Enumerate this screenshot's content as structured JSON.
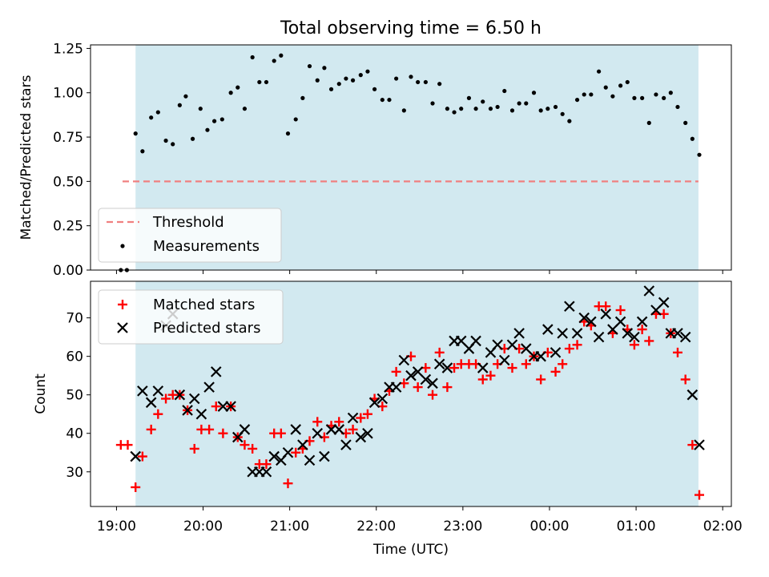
{
  "title": "Total observing time = 6.50 h",
  "xlabel": "Time (UTC)",
  "x_ticks": [
    "19:00",
    "20:00",
    "21:00",
    "22:00",
    "23:00",
    "00:00",
    "01:00",
    "02:00"
  ],
  "chart_data": [
    {
      "type": "scatter",
      "ylabel": "Matched/Predicted stars",
      "ylim": [
        0,
        1.27
      ],
      "y_ticks": [
        "0.00",
        "0.25",
        "0.50",
        "0.75",
        "1.00",
        "1.25"
      ],
      "y_tick_values": [
        0,
        0.25,
        0.5,
        0.75,
        1.0,
        1.25
      ],
      "x_range_hours": [
        18.7,
        26.1
      ],
      "shaded_span_hours": [
        19.22,
        25.72
      ],
      "shaded_color": "#d2e9f0",
      "legend_position": "lower left",
      "threshold": {
        "name": "Threshold",
        "value": 0.5,
        "x_from": 19.07,
        "x_to": 25.72,
        "color": "#f08080"
      },
      "series": [
        {
          "name": "Measurements",
          "color": "#000000",
          "marker": "dot",
          "points": [
            [
              19.05,
              0.0
            ],
            [
              19.12,
              0.0
            ],
            [
              19.22,
              0.77
            ],
            [
              19.3,
              0.67
            ],
            [
              19.4,
              0.86
            ],
            [
              19.48,
              0.89
            ],
            [
              19.57,
              0.73
            ],
            [
              19.65,
              0.71
            ],
            [
              19.73,
              0.93
            ],
            [
              19.8,
              0.98
            ],
            [
              19.88,
              0.74
            ],
            [
              19.97,
              0.91
            ],
            [
              20.05,
              0.79
            ],
            [
              20.13,
              0.84
            ],
            [
              20.22,
              0.85
            ],
            [
              20.32,
              1.0
            ],
            [
              20.4,
              1.03
            ],
            [
              20.48,
              0.91
            ],
            [
              20.57,
              1.2
            ],
            [
              20.65,
              1.06
            ],
            [
              20.73,
              1.06
            ],
            [
              20.82,
              1.18
            ],
            [
              20.9,
              1.21
            ],
            [
              20.98,
              0.77
            ],
            [
              21.07,
              0.85
            ],
            [
              21.15,
              0.97
            ],
            [
              21.23,
              1.15
            ],
            [
              21.32,
              1.07
            ],
            [
              21.4,
              1.14
            ],
            [
              21.48,
              1.02
            ],
            [
              21.57,
              1.05
            ],
            [
              21.65,
              1.08
            ],
            [
              21.73,
              1.07
            ],
            [
              21.82,
              1.1
            ],
            [
              21.9,
              1.12
            ],
            [
              21.98,
              1.02
            ],
            [
              22.07,
              0.96
            ],
            [
              22.15,
              0.96
            ],
            [
              22.23,
              1.08
            ],
            [
              22.32,
              0.9
            ],
            [
              22.4,
              1.09
            ],
            [
              22.48,
              1.06
            ],
            [
              22.57,
              1.06
            ],
            [
              22.65,
              0.94
            ],
            [
              22.73,
              1.05
            ],
            [
              22.82,
              0.91
            ],
            [
              22.9,
              0.89
            ],
            [
              22.98,
              0.91
            ],
            [
              23.07,
              0.97
            ],
            [
              23.15,
              0.91
            ],
            [
              23.23,
              0.95
            ],
            [
              23.32,
              0.91
            ],
            [
              23.4,
              0.92
            ],
            [
              23.48,
              1.01
            ],
            [
              23.57,
              0.9
            ],
            [
              23.65,
              0.94
            ],
            [
              23.73,
              0.94
            ],
            [
              23.82,
              1.0
            ],
            [
              23.9,
              0.9
            ],
            [
              23.98,
              0.91
            ],
            [
              24.07,
              0.92
            ],
            [
              24.15,
              0.88
            ],
            [
              24.23,
              0.84
            ],
            [
              24.32,
              0.96
            ],
            [
              24.4,
              0.99
            ],
            [
              24.48,
              0.99
            ],
            [
              24.57,
              1.12
            ],
            [
              24.65,
              1.03
            ],
            [
              24.73,
              0.98
            ],
            [
              24.82,
              1.04
            ],
            [
              24.9,
              1.06
            ],
            [
              24.98,
              0.97
            ],
            [
              25.07,
              0.97
            ],
            [
              25.15,
              0.83
            ],
            [
              25.23,
              0.99
            ],
            [
              25.32,
              0.97
            ],
            [
              25.4,
              1.0
            ],
            [
              25.48,
              0.92
            ],
            [
              25.57,
              0.83
            ],
            [
              25.65,
              0.74
            ],
            [
              25.73,
              0.65
            ]
          ]
        }
      ]
    },
    {
      "type": "scatter",
      "ylabel": "Count",
      "ylim": [
        21,
        79.5
      ],
      "y_ticks": [
        "30",
        "40",
        "50",
        "60",
        "70"
      ],
      "y_tick_values": [
        30,
        40,
        50,
        60,
        70
      ],
      "x_range_hours": [
        18.7,
        26.1
      ],
      "shaded_span_hours": [
        19.22,
        25.72
      ],
      "shaded_color": "#d2e9f0",
      "legend_position": "upper left",
      "series": [
        {
          "name": "Matched stars",
          "color": "#ff0000",
          "marker": "plus",
          "points": [
            [
              19.05,
              37
            ],
            [
              19.13,
              37
            ],
            [
              19.22,
              26
            ],
            [
              19.3,
              34
            ],
            [
              19.4,
              41
            ],
            [
              19.48,
              45
            ],
            [
              19.57,
              49
            ],
            [
              19.65,
              50
            ],
            [
              19.73,
              50
            ],
            [
              19.82,
              46
            ],
            [
              19.9,
              36
            ],
            [
              19.98,
              41
            ],
            [
              20.07,
              41
            ],
            [
              20.15,
              47
            ],
            [
              20.23,
              40
            ],
            [
              20.32,
              47
            ],
            [
              20.4,
              39
            ],
            [
              20.48,
              37
            ],
            [
              20.57,
              36
            ],
            [
              20.65,
              32
            ],
            [
              20.73,
              32
            ],
            [
              20.82,
              40
            ],
            [
              20.9,
              40
            ],
            [
              20.98,
              27
            ],
            [
              21.07,
              35
            ],
            [
              21.15,
              36
            ],
            [
              21.23,
              38
            ],
            [
              21.32,
              43
            ],
            [
              21.4,
              39
            ],
            [
              21.48,
              42
            ],
            [
              21.57,
              43
            ],
            [
              21.65,
              40
            ],
            [
              21.73,
              41
            ],
            [
              21.82,
              44
            ],
            [
              21.9,
              45
            ],
            [
              21.98,
              49
            ],
            [
              22.07,
              47
            ],
            [
              22.15,
              51
            ],
            [
              22.23,
              56
            ],
            [
              22.32,
              53
            ],
            [
              22.4,
              60
            ],
            [
              22.48,
              52
            ],
            [
              22.57,
              57
            ],
            [
              22.65,
              50
            ],
            [
              22.73,
              61
            ],
            [
              22.82,
              52
            ],
            [
              22.9,
              57
            ],
            [
              22.98,
              58
            ],
            [
              23.07,
              58
            ],
            [
              23.15,
              58
            ],
            [
              23.23,
              54
            ],
            [
              23.32,
              55
            ],
            [
              23.4,
              58
            ],
            [
              23.48,
              62
            ],
            [
              23.57,
              57
            ],
            [
              23.65,
              62
            ],
            [
              23.73,
              58
            ],
            [
              23.82,
              60
            ],
            [
              23.9,
              54
            ],
            [
              23.98,
              61
            ],
            [
              24.07,
              56
            ],
            [
              24.15,
              58
            ],
            [
              24.23,
              62
            ],
            [
              24.32,
              63
            ],
            [
              24.4,
              69
            ],
            [
              24.48,
              68
            ],
            [
              24.57,
              73
            ],
            [
              24.65,
              73
            ],
            [
              24.73,
              66
            ],
            [
              24.82,
              72
            ],
            [
              24.9,
              67
            ],
            [
              24.98,
              63
            ],
            [
              25.07,
              67
            ],
            [
              25.15,
              64
            ],
            [
              25.23,
              71
            ],
            [
              25.32,
              71
            ],
            [
              25.4,
              66
            ],
            [
              25.48,
              61
            ],
            [
              25.57,
              54
            ],
            [
              25.65,
              37
            ],
            [
              25.73,
              24
            ]
          ]
        },
        {
          "name": "Predicted stars",
          "color": "#000000",
          "marker": "x",
          "points": [
            [
              19.22,
              34
            ],
            [
              19.3,
              51
            ],
            [
              19.4,
              48
            ],
            [
              19.48,
              51
            ],
            [
              19.57,
              68
            ],
            [
              19.65,
              71
            ],
            [
              19.73,
              50
            ],
            [
              19.82,
              46
            ],
            [
              19.9,
              49
            ],
            [
              19.98,
              45
            ],
            [
              20.07,
              52
            ],
            [
              20.15,
              56
            ],
            [
              20.23,
              47
            ],
            [
              20.32,
              47
            ],
            [
              20.4,
              39
            ],
            [
              20.48,
              41
            ],
            [
              20.57,
              30
            ],
            [
              20.65,
              30
            ],
            [
              20.73,
              30
            ],
            [
              20.82,
              34
            ],
            [
              20.9,
              33
            ],
            [
              20.98,
              35
            ],
            [
              21.07,
              41
            ],
            [
              21.15,
              37
            ],
            [
              21.23,
              33
            ],
            [
              21.32,
              40
            ],
            [
              21.4,
              34
            ],
            [
              21.48,
              41
            ],
            [
              21.57,
              41
            ],
            [
              21.65,
              37
            ],
            [
              21.73,
              44
            ],
            [
              21.82,
              39
            ],
            [
              21.9,
              40
            ],
            [
              21.98,
              48
            ],
            [
              22.07,
              49
            ],
            [
              22.15,
              52
            ],
            [
              22.23,
              52
            ],
            [
              22.32,
              59
            ],
            [
              22.4,
              55
            ],
            [
              22.48,
              56
            ],
            [
              22.57,
              54
            ],
            [
              22.65,
              53
            ],
            [
              22.73,
              58
            ],
            [
              22.82,
              57
            ],
            [
              22.9,
              64
            ],
            [
              22.98,
              64
            ],
            [
              23.07,
              62
            ],
            [
              23.15,
              64
            ],
            [
              23.23,
              57
            ],
            [
              23.32,
              61
            ],
            [
              23.4,
              63
            ],
            [
              23.48,
              59
            ],
            [
              23.57,
              63
            ],
            [
              23.65,
              66
            ],
            [
              23.73,
              62
            ],
            [
              23.82,
              60
            ],
            [
              23.9,
              60
            ],
            [
              23.98,
              67
            ],
            [
              24.07,
              61
            ],
            [
              24.15,
              66
            ],
            [
              24.23,
              73
            ],
            [
              24.32,
              66
            ],
            [
              24.4,
              70
            ],
            [
              24.48,
              69
            ],
            [
              24.57,
              65
            ],
            [
              24.65,
              71
            ],
            [
              24.73,
              67
            ],
            [
              24.82,
              69
            ],
            [
              24.9,
              66
            ],
            [
              24.98,
              65
            ],
            [
              25.07,
              69
            ],
            [
              25.15,
              77
            ],
            [
              25.23,
              72
            ],
            [
              25.32,
              74
            ],
            [
              25.4,
              66
            ],
            [
              25.48,
              66
            ],
            [
              25.57,
              65
            ],
            [
              25.65,
              50
            ],
            [
              25.73,
              37
            ]
          ]
        }
      ]
    }
  ]
}
